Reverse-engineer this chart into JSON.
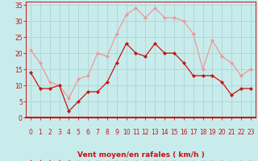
{
  "hours": [
    0,
    1,
    2,
    3,
    4,
    5,
    6,
    7,
    8,
    9,
    10,
    11,
    12,
    13,
    14,
    15,
    16,
    17,
    18,
    19,
    20,
    21,
    22,
    23
  ],
  "vent_moyen": [
    14,
    9,
    9,
    10,
    2,
    5,
    8,
    8,
    11,
    17,
    23,
    20,
    19,
    23,
    20,
    20,
    17,
    13,
    13,
    13,
    11,
    7,
    9,
    9
  ],
  "rafales": [
    21,
    17,
    11,
    10,
    6,
    12,
    13,
    20,
    19,
    26,
    32,
    34,
    31,
    34,
    31,
    31,
    30,
    26,
    15,
    24,
    19,
    17,
    13,
    15
  ],
  "bg_color": "#c8ecec",
  "grid_color": "#b0d4d4",
  "line_dark": "#cc1111",
  "line_light": "#ee9999",
  "xlabel": "Vent moyen/en rafales ( km/h )",
  "ylim": [
    0,
    36
  ],
  "yticks": [
    0,
    5,
    10,
    15,
    20,
    25,
    30,
    35
  ],
  "xlim": [
    -0.5,
    23.5
  ],
  "axis_fontsize": 6.5,
  "tick_fontsize": 5.5,
  "xlabel_fontsize": 6.5
}
